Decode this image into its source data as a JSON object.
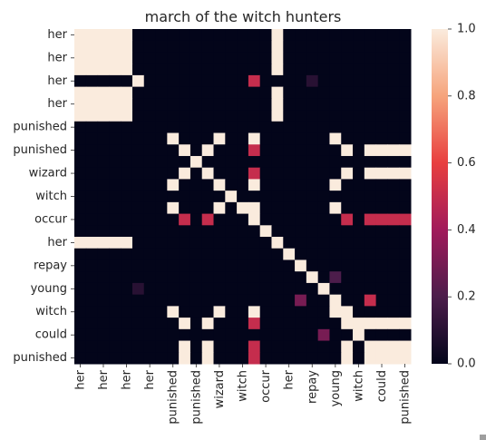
{
  "chart_data": {
    "type": "heatmap",
    "title": "march of the witch hunters",
    "tokens": [
      "her",
      "her",
      "her",
      "her",
      "her",
      "punished",
      "punished",
      "punished",
      "punished",
      "wizard",
      "wizard",
      "witch",
      "witch",
      "occur",
      "occur",
      "her",
      "her",
      "repay",
      "repay",
      "young",
      "young",
      "witch",
      "witch",
      "could",
      "could",
      "punished",
      "punished",
      "punished",
      "punished"
    ],
    "y_tick_labels": [
      "her",
      "her",
      "her",
      "her",
      "punished",
      "punished",
      "wizard",
      "witch",
      "occur",
      "her",
      "repay",
      "young",
      "witch",
      "could",
      "punished"
    ],
    "x_tick_labels": [
      "her",
      "her",
      "her",
      "her",
      "punished",
      "punished",
      "wizard",
      "witch",
      "occur",
      "her",
      "repay",
      "young",
      "witch",
      "could",
      "punished"
    ],
    "values": [
      [
        1,
        1,
        1,
        1,
        1,
        0,
        0,
        0,
        0,
        0,
        0,
        0,
        0,
        0,
        0,
        0,
        0,
        1,
        0,
        0,
        0,
        0,
        0,
        0,
        0,
        0,
        0,
        0,
        0
      ],
      [
        1,
        1,
        1,
        1,
        1,
        0,
        0,
        0,
        0,
        0,
        0,
        0,
        0,
        0,
        0,
        0,
        0,
        1,
        0,
        0,
        0,
        0,
        0,
        0,
        0,
        0,
        0,
        0,
        0
      ],
      [
        1,
        1,
        1,
        1,
        1,
        0,
        0,
        0,
        0,
        0,
        0,
        0,
        0,
        0,
        0,
        0,
        0,
        1,
        0,
        0,
        0,
        0,
        0,
        0,
        0,
        0,
        0,
        0,
        0
      ],
      [
        1,
        1,
        1,
        1,
        1,
        0,
        0,
        0,
        0,
        0,
        0,
        0,
        0,
        0,
        0,
        0,
        0,
        1,
        0,
        0,
        0,
        0,
        0,
        0,
        0,
        0,
        0,
        0,
        0
      ],
      [
        0,
        0,
        0,
        0,
        0,
        1,
        0,
        0,
        0,
        0,
        0,
        0,
        0,
        0,
        0,
        0.5,
        0,
        0,
        0,
        0,
        0.1,
        0,
        0,
        0,
        0,
        0,
        0,
        0,
        0
      ],
      [
        1,
        1,
        1,
        1,
        1,
        0,
        0,
        0,
        0,
        0,
        0,
        0,
        0,
        0,
        0,
        0,
        0,
        1,
        0,
        0,
        0,
        0,
        0,
        0,
        0,
        0,
        0,
        0,
        0
      ],
      [
        1,
        1,
        1,
        1,
        1,
        0,
        0,
        0,
        0,
        0,
        0,
        0,
        0,
        0,
        0,
        0,
        0,
        1,
        0,
        0,
        0,
        0,
        0,
        0,
        0,
        0,
        0,
        0,
        0
      ],
      [
        1,
        1,
        1,
        1,
        1,
        0,
        0,
        0,
        0,
        0,
        0,
        0,
        0,
        0,
        0,
        0,
        0,
        1,
        0,
        0,
        0,
        0,
        0,
        0,
        0,
        0,
        0,
        0,
        0
      ],
      [
        0,
        0,
        0,
        0,
        0,
        0,
        0,
        0,
        0,
        0,
        0,
        0,
        0,
        0,
        0,
        0,
        0,
        0,
        0,
        0,
        0,
        0,
        0,
        0,
        0,
        0,
        0,
        0,
        0
      ],
      [
        0,
        0,
        0,
        0,
        0,
        0,
        0,
        0,
        1,
        0,
        0,
        0,
        1,
        0,
        0,
        1,
        0,
        0,
        0,
        0,
        0,
        0,
        1,
        0,
        0,
        0,
        0,
        0,
        0
      ],
      [
        0,
        0,
        0,
        0,
        0,
        0,
        0,
        0,
        0,
        1,
        0,
        1,
        0,
        0,
        0,
        0.5,
        0,
        0,
        0,
        0,
        0,
        0,
        0,
        1,
        0,
        1,
        1,
        1,
        1
      ],
      [
        0,
        0,
        0,
        0,
        0,
        0,
        0,
        0,
        0,
        0,
        1,
        0,
        0,
        0,
        0,
        0,
        0,
        0,
        0,
        0,
        0,
        0,
        0,
        0,
        0,
        0,
        0,
        0,
        0
      ],
      [
        0,
        0,
        0,
        0,
        0,
        0,
        0,
        0,
        0,
        1,
        0,
        1,
        0,
        0,
        0,
        0.5,
        0,
        0,
        0,
        0,
        0,
        0,
        0,
        1,
        0,
        1,
        1,
        1,
        1
      ],
      [
        0,
        0,
        0,
        0,
        0,
        0,
        0,
        0,
        1,
        0,
        0,
        0,
        1,
        0,
        0,
        1,
        0,
        0,
        0,
        0,
        0,
        0,
        1,
        0,
        0,
        0,
        0,
        0,
        0
      ],
      [
        0,
        0,
        0,
        0,
        0,
        0,
        0,
        0,
        0,
        0,
        0,
        0,
        0,
        1,
        0,
        0,
        0,
        0,
        0,
        0,
        0,
        0,
        0,
        0,
        0,
        0,
        0,
        0,
        0
      ],
      [
        0,
        0,
        0,
        0,
        0,
        0,
        0,
        0,
        1,
        0,
        0,
        0,
        1,
        0,
        1,
        1,
        0,
        0,
        0,
        0,
        0,
        0,
        1,
        0,
        0,
        0,
        0,
        0,
        0
      ],
      [
        0,
        0,
        0,
        0,
        0,
        0,
        0,
        0,
        0,
        0.5,
        0,
        0.5,
        0,
        0,
        0,
        1,
        0,
        0,
        0,
        0,
        0,
        0,
        0,
        0.5,
        0,
        0.5,
        0.5,
        0.5,
        0.5
      ],
      [
        0,
        0,
        0,
        0,
        0,
        0,
        0,
        0,
        0,
        0,
        0,
        0,
        0,
        0,
        0,
        0,
        1,
        0,
        0,
        0,
        0,
        0,
        0,
        0,
        0,
        0,
        0,
        0,
        0
      ],
      [
        1,
        1,
        1,
        1,
        1,
        0,
        0,
        0,
        0,
        0,
        0,
        0,
        0,
        0,
        0,
        0,
        0,
        1,
        0,
        0,
        0,
        0,
        0,
        0,
        0,
        0,
        0,
        0,
        0
      ],
      [
        0,
        0,
        0,
        0,
        0,
        0,
        0,
        0,
        0,
        0,
        0,
        0,
        0,
        0,
        0,
        0,
        0,
        0,
        1,
        0,
        0,
        0,
        0,
        0,
        0,
        0,
        0,
        0,
        0
      ],
      [
        0,
        0,
        0,
        0,
        0,
        0,
        0,
        0,
        0,
        0,
        0,
        0,
        0,
        0,
        0,
        0,
        0,
        0,
        0,
        1,
        0,
        0,
        0,
        0,
        0,
        0,
        0,
        0,
        0
      ],
      [
        0,
        0,
        0,
        0,
        0,
        0,
        0,
        0,
        0,
        0,
        0,
        0,
        0,
        0,
        0,
        0,
        0,
        0,
        0,
        0,
        1,
        0,
        0.2,
        0,
        0,
        0,
        0,
        0,
        0
      ],
      [
        0,
        0,
        0,
        0,
        0,
        0.1,
        0,
        0,
        0,
        0,
        0,
        0,
        0,
        0,
        0,
        0,
        0,
        0,
        0,
        0,
        0,
        1,
        0,
        0,
        0,
        0,
        0,
        0,
        0
      ],
      [
        0,
        0,
        0,
        0,
        0,
        0,
        0,
        0,
        0,
        0,
        0,
        0,
        0,
        0,
        0,
        0,
        0,
        0,
        0,
        0.3,
        0,
        0,
        1,
        0,
        0,
        0.5,
        0,
        0,
        0
      ],
      [
        0,
        0,
        0,
        0,
        0,
        0,
        0,
        0,
        1,
        0,
        0,
        0,
        1,
        0,
        0,
        1,
        0,
        0,
        0,
        0,
        0,
        0,
        1,
        1,
        0,
        0,
        0,
        0,
        0
      ],
      [
        0,
        0,
        0,
        0,
        0,
        0,
        0,
        0,
        0,
        1,
        0,
        1,
        0,
        0,
        0,
        0.5,
        0,
        0,
        0,
        0,
        0,
        0,
        0,
        1,
        1,
        1,
        1,
        1,
        1
      ],
      [
        0,
        0,
        0,
        0,
        0,
        0,
        0,
        0,
        0,
        0,
        0,
        0,
        0,
        0,
        0,
        0,
        0,
        0,
        0,
        0,
        0,
        0.3,
        0,
        0,
        1,
        0,
        0,
        0,
        0
      ],
      [
        0,
        0,
        0,
        0,
        0,
        0,
        0,
        0,
        0,
        1,
        0,
        1,
        0,
        0,
        0,
        0.5,
        0,
        0,
        0,
        0,
        0,
        0,
        0,
        1,
        0,
        1,
        1,
        1,
        1
      ],
      [
        0,
        0,
        0,
        0,
        0,
        0,
        0,
        0,
        0,
        1,
        0,
        1,
        0,
        0,
        0,
        0.5,
        0,
        0,
        0,
        0,
        0,
        0,
        0,
        1,
        0,
        1,
        1,
        1,
        1
      ]
    ],
    "colorbar": {
      "min": 0.0,
      "max": 1.0,
      "tick_labels": [
        "0.0",
        "0.2",
        "0.4",
        "0.6",
        "0.8",
        "1.0"
      ]
    }
  }
}
